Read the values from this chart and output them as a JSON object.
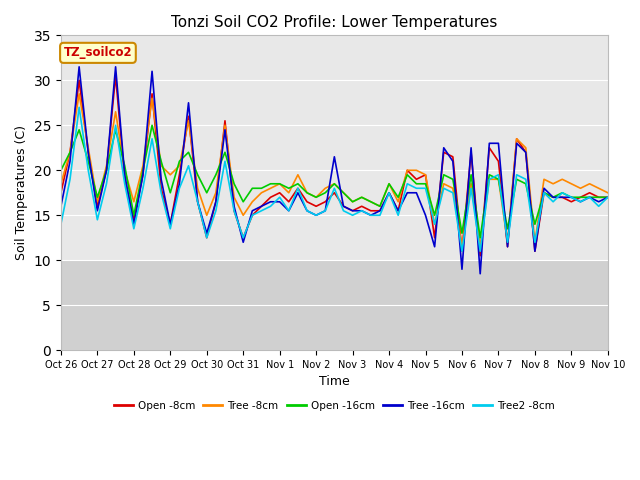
{
  "title": "Tonzi Soil CO2 Profile: Lower Temperatures",
  "xlabel": "Time",
  "ylabel": "Soil Temperatures (C)",
  "annotation": "TZ_soilco2",
  "ylim": [
    0,
    35
  ],
  "yticks": [
    0,
    5,
    10,
    15,
    20,
    25,
    30,
    35
  ],
  "fig_bg": "#ffffff",
  "plot_bg": "#e8e8e8",
  "legend_entries": [
    "Open -8cm",
    "Tree -8cm",
    "Open -16cm",
    "Tree -16cm",
    "Tree2 -8cm"
  ],
  "line_colors": [
    "#dd0000",
    "#ff8800",
    "#00cc00",
    "#0000cc",
    "#00ccee"
  ],
  "xtick_labels": [
    "Oct 26",
    "Oct 27",
    "Oct 28",
    "Oct 29",
    "Oct 30",
    "Oct 31",
    "Nov 1",
    "Nov 2",
    "Nov 3",
    "Nov 4",
    "Nov 5",
    "Nov 6",
    "Nov 7",
    "Nov 8",
    "Nov 9",
    "Nov 10"
  ],
  "n_days": 15,
  "open_8cm": [
    17.5,
    22.0,
    30.0,
    22.0,
    16.0,
    20.0,
    30.5,
    19.0,
    14.5,
    19.5,
    28.5,
    18.0,
    14.0,
    19.5,
    26.0,
    16.5,
    12.5,
    16.5,
    25.5,
    15.5,
    12.5,
    15.0,
    16.0,
    17.0,
    17.5,
    16.5,
    18.0,
    16.5,
    16.0,
    16.5,
    17.5,
    16.0,
    15.5,
    16.0,
    15.5,
    15.5,
    17.5,
    15.5,
    20.0,
    19.0,
    19.5,
    12.5,
    22.0,
    21.5,
    11.0,
    22.0,
    10.5,
    22.5,
    21.0,
    11.5,
    23.5,
    22.0,
    11.0,
    17.5,
    17.0,
    17.0,
    16.5,
    17.0,
    17.5,
    17.0,
    17.0
  ],
  "tree_8cm": [
    18.5,
    22.0,
    28.5,
    22.5,
    16.5,
    20.5,
    26.5,
    20.0,
    16.5,
    20.5,
    28.0,
    20.5,
    19.5,
    20.5,
    25.5,
    18.0,
    15.0,
    17.5,
    25.0,
    17.0,
    15.0,
    16.5,
    17.5,
    18.0,
    18.5,
    17.5,
    19.5,
    17.5,
    17.0,
    18.0,
    18.5,
    17.5,
    16.5,
    17.0,
    16.5,
    16.0,
    18.5,
    16.5,
    20.0,
    20.0,
    19.5,
    14.0,
    18.5,
    18.0,
    11.5,
    18.5,
    11.5,
    19.0,
    19.0,
    12.0,
    23.5,
    22.5,
    12.0,
    19.0,
    18.5,
    19.0,
    18.5,
    18.0,
    18.5,
    18.0,
    17.5
  ],
  "open_16cm": [
    20.0,
    22.0,
    24.5,
    21.0,
    17.0,
    20.0,
    24.5,
    20.5,
    15.0,
    20.0,
    25.0,
    21.0,
    17.5,
    21.0,
    22.0,
    19.5,
    17.5,
    19.5,
    22.0,
    18.5,
    16.5,
    18.0,
    18.0,
    18.5,
    18.5,
    18.0,
    18.5,
    17.5,
    17.0,
    17.5,
    18.5,
    17.5,
    16.5,
    17.0,
    16.5,
    16.0,
    18.5,
    17.0,
    19.5,
    18.5,
    18.5,
    15.0,
    19.5,
    19.0,
    13.0,
    19.5,
    12.5,
    19.5,
    19.0,
    13.5,
    19.0,
    18.5,
    14.0,
    17.5,
    17.0,
    17.5,
    17.0,
    17.0,
    17.0,
    17.0,
    17.0
  ],
  "tree_16cm": [
    16.0,
    21.0,
    31.5,
    22.0,
    15.5,
    20.0,
    31.5,
    19.5,
    14.0,
    19.5,
    31.0,
    19.0,
    14.0,
    18.5,
    27.5,
    16.5,
    13.0,
    16.5,
    24.5,
    16.0,
    12.0,
    15.5,
    16.0,
    16.5,
    16.5,
    15.5,
    17.5,
    15.5,
    15.0,
    15.5,
    21.5,
    16.0,
    15.5,
    15.5,
    15.0,
    15.5,
    17.5,
    15.5,
    17.5,
    17.5,
    15.0,
    11.5,
    22.5,
    21.0,
    9.0,
    22.5,
    8.5,
    23.0,
    23.0,
    11.5,
    23.0,
    22.0,
    11.0,
    18.0,
    17.0,
    17.0,
    17.0,
    16.5,
    17.0,
    16.5,
    17.0
  ],
  "tree2_8cm": [
    14.0,
    19.0,
    27.0,
    20.0,
    14.5,
    18.5,
    25.0,
    18.5,
    13.5,
    18.0,
    23.5,
    17.5,
    13.5,
    18.0,
    20.5,
    16.5,
    12.5,
    15.5,
    21.0,
    15.5,
    12.5,
    15.0,
    15.5,
    16.0,
    17.0,
    15.5,
    18.0,
    15.5,
    15.0,
    15.5,
    18.0,
    15.5,
    15.0,
    15.5,
    15.0,
    15.0,
    17.5,
    15.0,
    18.5,
    18.0,
    18.0,
    14.0,
    18.0,
    17.5,
    11.0,
    18.0,
    11.0,
    19.0,
    19.5,
    12.0,
    19.5,
    19.0,
    12.0,
    17.5,
    16.5,
    17.5,
    17.0,
    16.5,
    17.0,
    16.0,
    17.0
  ]
}
